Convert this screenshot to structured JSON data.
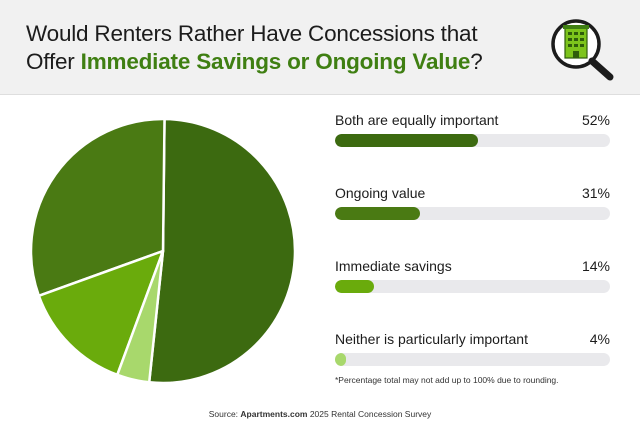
{
  "header": {
    "title_prefix": "Would Renters Rather Have Concessions that Offer ",
    "title_highlight": "Immediate Savings or Ongoing Value",
    "title_suffix": "?",
    "logo_icon": "building-magnifier-icon"
  },
  "colors": {
    "dark_green": "#3c6a10",
    "mid_green": "#4a7a13",
    "bright_green": "#6aab0c",
    "light_green": "#a8d86c",
    "highlight_text": "#3f7f12",
    "track": "#e9e9ec"
  },
  "chart_data": {
    "type": "pie",
    "slices": [
      {
        "label": "Both are equally important",
        "value": 52,
        "display": "52%",
        "color": "#3c6a10"
      },
      {
        "label": "Ongoing value",
        "value": 31,
        "display": "31%",
        "color": "#4a7a13"
      },
      {
        "label": "Immediate savings",
        "value": 14,
        "display": "14%",
        "color": "#6aab0c"
      },
      {
        "label": "Neither is particularly important",
        "value": 4,
        "display": "4%",
        "color": "#a8d86c"
      }
    ],
    "bar_max": 100
  },
  "footnote": "*Percentage total may not add up to 100% due to rounding.",
  "source": {
    "prefix": "Source: ",
    "brand": "Apartments.com",
    "suffix": " 2025 Rental Concession Survey"
  }
}
